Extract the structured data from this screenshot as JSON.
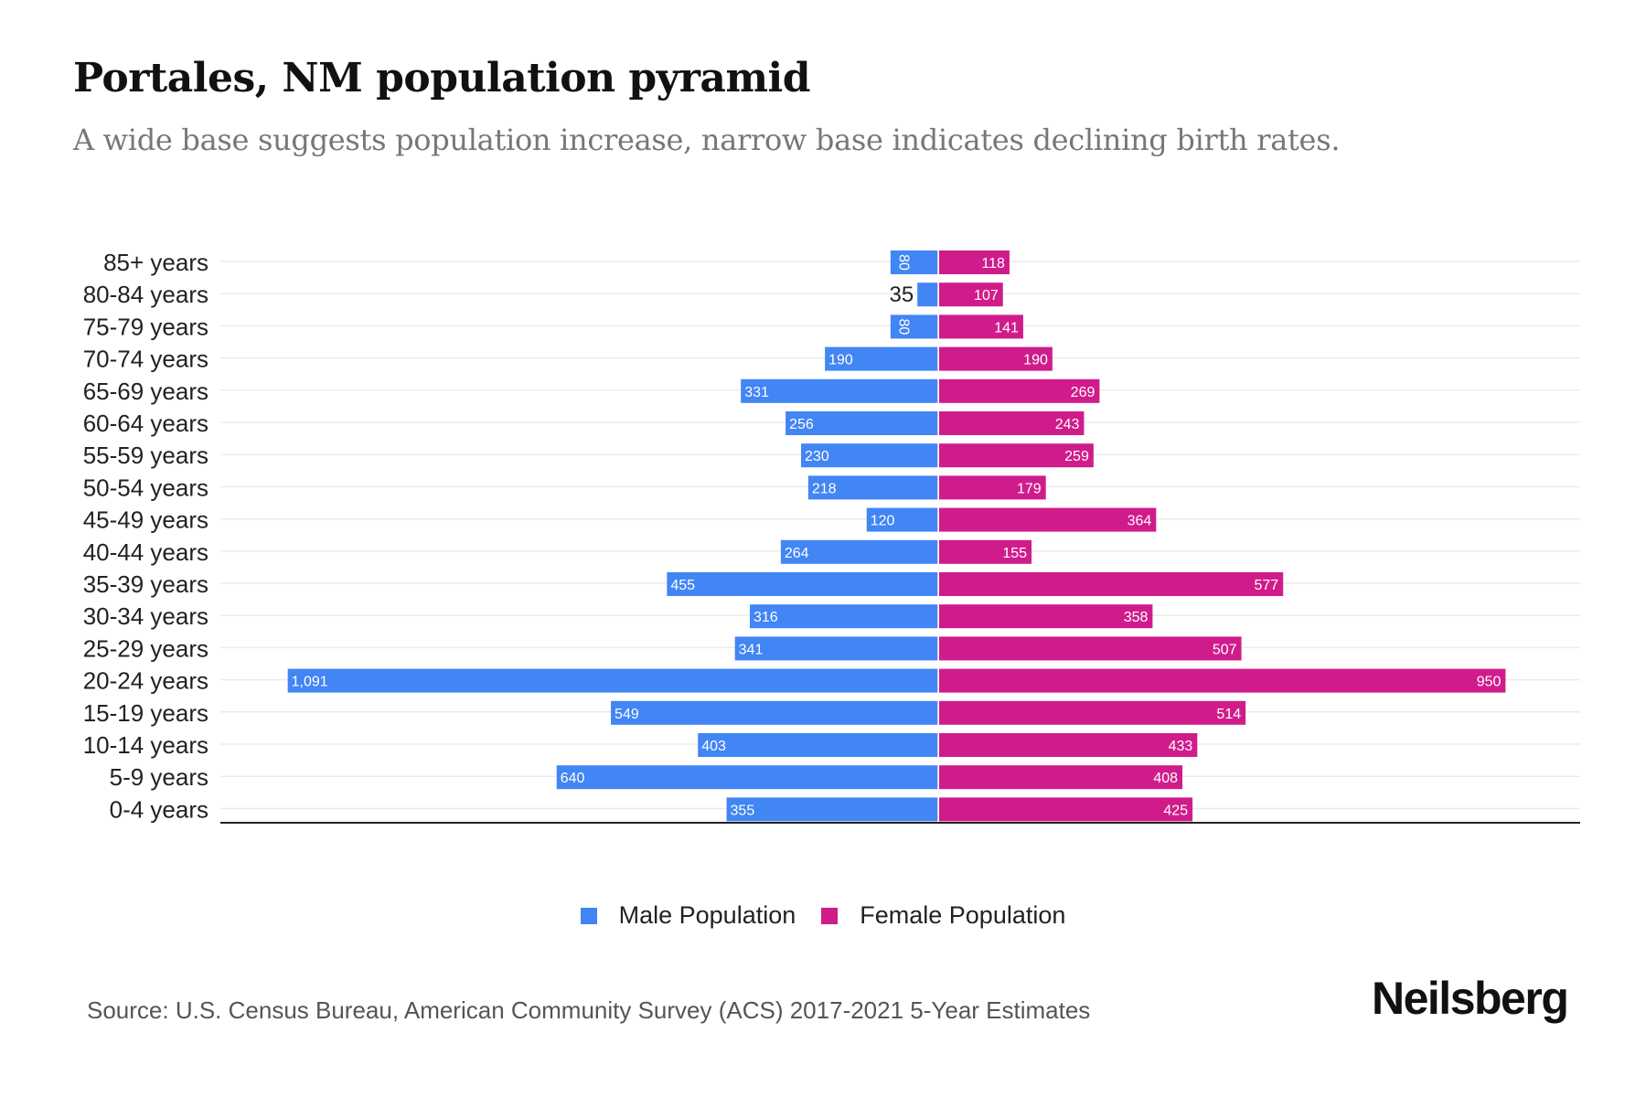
{
  "title": "Portales, NM population pyramid",
  "subtitle": "A wide base suggests population increase, narrow base indicates declining birth rates.",
  "colors": {
    "male": "#4285f4",
    "female": "#d01c8b",
    "grid": "#ebebeb",
    "axis": "#222222"
  },
  "chart_data": {
    "type": "bar",
    "orientation": "horizontal",
    "layout": "population-pyramid",
    "title": "Portales, NM population pyramid",
    "subtitle": "A wide base suggests population increase, narrow base indicates declining birth rates.",
    "xlabel": "",
    "ylabel": "",
    "grid": true,
    "legend_position": "bottom-center",
    "xlim": [
      -1100,
      1100
    ],
    "categories": [
      "85+ years",
      "80-84 years",
      "75-79 years",
      "70-74 years",
      "65-69 years",
      "60-64 years",
      "55-59 years",
      "50-54 years",
      "45-49 years",
      "40-44 years",
      "35-39 years",
      "30-34 years",
      "25-29 years",
      "20-24 years",
      "15-19 years",
      "10-14 years",
      "5-9 years",
      "0-4 years"
    ],
    "series": [
      {
        "name": "Male Population",
        "side": "left",
        "values": [
          80,
          35,
          80,
          190,
          331,
          256,
          230,
          218,
          120,
          264,
          455,
          316,
          341,
          1091,
          549,
          403,
          640,
          355
        ],
        "labels": [
          "80",
          "35",
          "80",
          "190",
          "331",
          "256",
          "230",
          "218",
          "120",
          "264",
          "455",
          "316",
          "341",
          "1,091",
          "549",
          "403",
          "640",
          "355"
        ]
      },
      {
        "name": "Female Population",
        "side": "right",
        "values": [
          118,
          107,
          141,
          190,
          269,
          243,
          259,
          179,
          364,
          155,
          577,
          358,
          507,
          950,
          514,
          433,
          408,
          425
        ],
        "labels": [
          "118",
          "107",
          "141",
          "190",
          "269",
          "243",
          "259",
          "179",
          "364",
          "155",
          "577",
          "358",
          "507",
          "950",
          "514",
          "433",
          "408",
          "425"
        ]
      }
    ]
  },
  "legend": [
    {
      "label": "Male Population",
      "color": "#4285f4"
    },
    {
      "label": "Female Population",
      "color": "#d01c8b"
    }
  ],
  "source": "Source: U.S. Census Bureau, American Community Survey (ACS) 2017-2021 5-Year Estimates",
  "brand": "Neilsberg"
}
